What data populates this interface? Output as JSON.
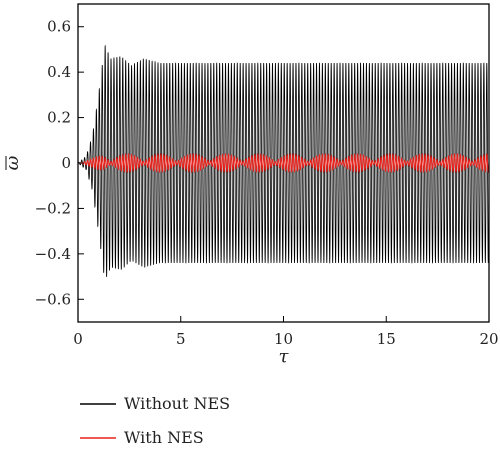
{
  "chart_data": {
    "type": "line",
    "xlabel": "τ",
    "ylabel": "ω",
    "ylabel_overline": true,
    "xlim": [
      0,
      20
    ],
    "ylim": [
      -0.7,
      0.7
    ],
    "x_ticks": [
      0,
      5,
      10,
      15,
      20
    ],
    "x_tick_labels": [
      "0",
      "5",
      "10",
      "15",
      "20"
    ],
    "y_ticks": [
      -0.6,
      -0.4,
      -0.2,
      0,
      0.2,
      0.4,
      0.6
    ],
    "y_tick_labels": [
      "−0.6",
      "−0.4",
      "−0.2",
      "0",
      "0.2",
      "0.4",
      "0.6"
    ],
    "grid": false,
    "legend_position": "below",
    "series": [
      {
        "name": "Without NES",
        "color": "#000000",
        "oscillation_frequency": 7.0,
        "steady_amplitude": 0.44,
        "envelope_points": [
          [
            0,
            0
          ],
          [
            0.4,
            0.03
          ],
          [
            0.7,
            0.12
          ],
          [
            1.0,
            0.3
          ],
          [
            1.3,
            0.52
          ],
          [
            1.6,
            0.46
          ],
          [
            2.1,
            0.47
          ],
          [
            2.6,
            0.43
          ],
          [
            3.2,
            0.46
          ],
          [
            4.0,
            0.44
          ],
          [
            20,
            0.44
          ]
        ]
      },
      {
        "name": "With NES",
        "color": "#e8221c",
        "oscillation_frequency": 7.0,
        "beat_period": 1.6,
        "beat_max_amplitude": 0.04,
        "beat_min_amplitude": 0.006,
        "envelope_points": [
          [
            0,
            0
          ],
          [
            0.7,
            0.02
          ],
          [
            1.2,
            0.04
          ]
        ]
      }
    ]
  }
}
